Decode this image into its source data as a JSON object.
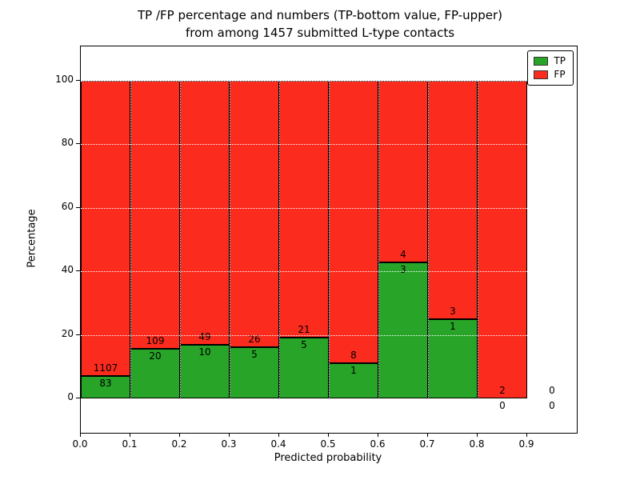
{
  "chart_data": {
    "type": "bar",
    "stacked": true,
    "title_line1": "TP /FP percentage and numbers (TP-bottom value, FP-upper)",
    "title_line2": "from among 1457 submitted L-type contacts",
    "xlabel": "Predicted probability",
    "ylabel": "Percentage",
    "total_submitted": 1457,
    "x_tick_labels": [
      "0.0",
      "0.1",
      "0.2",
      "0.3",
      "0.4",
      "0.5",
      "0.6",
      "0.7",
      "0.8",
      "0.9"
    ],
    "y_tick_values": [
      0,
      20,
      40,
      60,
      80,
      100
    ],
    "xlim": [
      0.0,
      1.0
    ],
    "ylim": [
      -11,
      111
    ],
    "bin_width": 0.1,
    "bins_start": [
      0.0,
      0.1,
      0.2,
      0.3,
      0.4,
      0.5,
      0.6,
      0.7,
      0.8,
      0.9
    ],
    "series": [
      {
        "name": "TP",
        "color": "#28a428",
        "counts": [
          83,
          20,
          10,
          5,
          5,
          1,
          3,
          1,
          0,
          0
        ]
      },
      {
        "name": "FP",
        "color": "#fb2b1d",
        "counts": [
          1107,
          109,
          49,
          26,
          21,
          8,
          4,
          3,
          2,
          0
        ]
      }
    ],
    "tp_percent_of_bin": [
      6.97,
      15.5,
      16.95,
      16.13,
      19.23,
      11.11,
      42.86,
      25.0,
      0.0,
      null
    ],
    "legend_position": "upper right",
    "grid": {
      "on": true,
      "color": "#ffffff",
      "style": "dotted"
    }
  }
}
